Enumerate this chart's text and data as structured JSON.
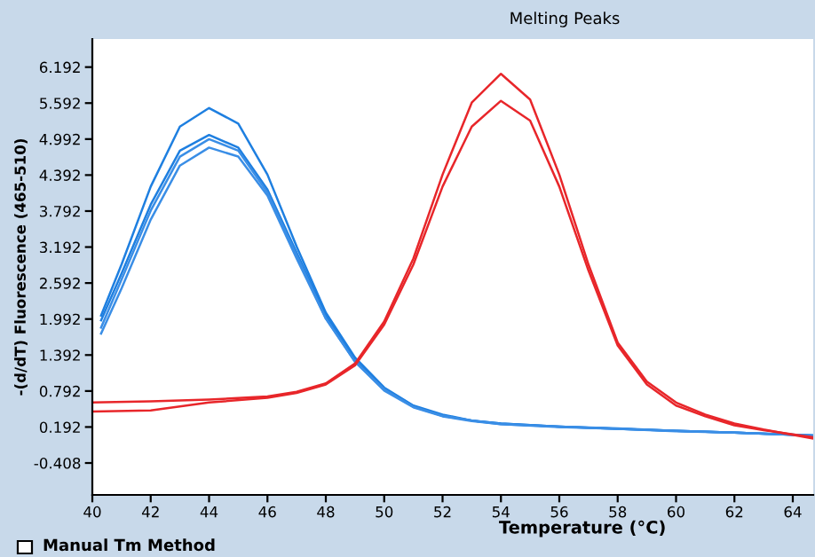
{
  "chart_data": {
    "type": "line",
    "title": "Melting Peaks",
    "xlabel": "Temperature (°C)",
    "ylabel": "-(d/dT) Fluorescence (465-510)",
    "annotations": [
      "Manual Tm Method"
    ],
    "xlim": [
      40,
      64.7
    ],
    "xticks": [
      40,
      42,
      44,
      46,
      48,
      50,
      52,
      54,
      56,
      58,
      60,
      62,
      64
    ],
    "ylim": [
      -0.94,
      6.66
    ],
    "yticks": [
      -0.408,
      0.192,
      0.792,
      1.392,
      1.992,
      2.592,
      3.192,
      3.792,
      4.392,
      4.992,
      5.592,
      6.192
    ],
    "grid": false,
    "legend": false,
    "marker": "none",
    "line_style": "solid",
    "series": [
      {
        "color": "#1e7fe0",
        "x": [
          40.3,
          41,
          42,
          43,
          44,
          45,
          46,
          47,
          48,
          49,
          50,
          51,
          52,
          53,
          54,
          56,
          58,
          60,
          62,
          64.7
        ],
        "values": [
          2.05,
          2.9,
          4.2,
          5.2,
          5.51,
          5.25,
          4.4,
          3.2,
          2.1,
          1.35,
          0.85,
          0.55,
          0.4,
          0.3,
          0.25,
          0.2,
          0.17,
          0.13,
          0.1,
          0.05
        ]
      },
      {
        "color": "#1e7fe0",
        "x": [
          40.3,
          41,
          42,
          43,
          44,
          45,
          46,
          47,
          48,
          49,
          50,
          51,
          52,
          53,
          54,
          56,
          58,
          60,
          62,
          64.7
        ],
        "values": [
          1.97,
          2.75,
          3.9,
          4.8,
          5.06,
          4.85,
          4.15,
          3.1,
          2.05,
          1.3,
          0.83,
          0.54,
          0.38,
          0.3,
          0.25,
          0.2,
          0.16,
          0.13,
          0.1,
          0.05
        ]
      },
      {
        "color": "#3a8ee6",
        "x": [
          40.3,
          41,
          42,
          43,
          44,
          45,
          46,
          47,
          48,
          49,
          50,
          51,
          52,
          53,
          54,
          56,
          58,
          60,
          62,
          64.7
        ],
        "values": [
          1.85,
          2.65,
          3.8,
          4.7,
          4.99,
          4.8,
          4.1,
          3.05,
          2.0,
          1.28,
          0.82,
          0.53,
          0.38,
          0.3,
          0.24,
          0.2,
          0.16,
          0.13,
          0.1,
          0.05
        ]
      },
      {
        "color": "#3a8ee6",
        "x": [
          40.3,
          41,
          42,
          43,
          44,
          45,
          46,
          47,
          48,
          49,
          50,
          51,
          52,
          53,
          54,
          56,
          58,
          60,
          62,
          64.7
        ],
        "values": [
          1.75,
          2.5,
          3.65,
          4.55,
          4.85,
          4.7,
          4.05,
          3.0,
          2.0,
          1.28,
          0.8,
          0.52,
          0.37,
          0.29,
          0.24,
          0.19,
          0.16,
          0.12,
          0.1,
          0.05
        ]
      },
      {
        "color": "#e8262a",
        "x": [
          40,
          42,
          44,
          46,
          47,
          48,
          49,
          50,
          51,
          52,
          53,
          54,
          55,
          56,
          57,
          58,
          59,
          60,
          61,
          62,
          63,
          64.7
        ],
        "values": [
          0.6,
          0.62,
          0.65,
          0.7,
          0.78,
          0.92,
          1.25,
          1.95,
          3.0,
          4.4,
          5.6,
          6.08,
          5.65,
          4.4,
          2.9,
          1.6,
          0.95,
          0.6,
          0.4,
          0.25,
          0.15,
          0.0
        ]
      },
      {
        "color": "#e8262a",
        "x": [
          40,
          42,
          44,
          46,
          47,
          48,
          49,
          50,
          51,
          52,
          53,
          54,
          55,
          56,
          57,
          58,
          59,
          60,
          61,
          62,
          63,
          64.7
        ],
        "values": [
          0.45,
          0.47,
          0.6,
          0.68,
          0.76,
          0.9,
          1.22,
          1.9,
          2.9,
          4.2,
          5.2,
          5.63,
          5.3,
          4.2,
          2.8,
          1.55,
          0.9,
          0.55,
          0.37,
          0.22,
          0.14,
          0.02
        ]
      }
    ]
  }
}
